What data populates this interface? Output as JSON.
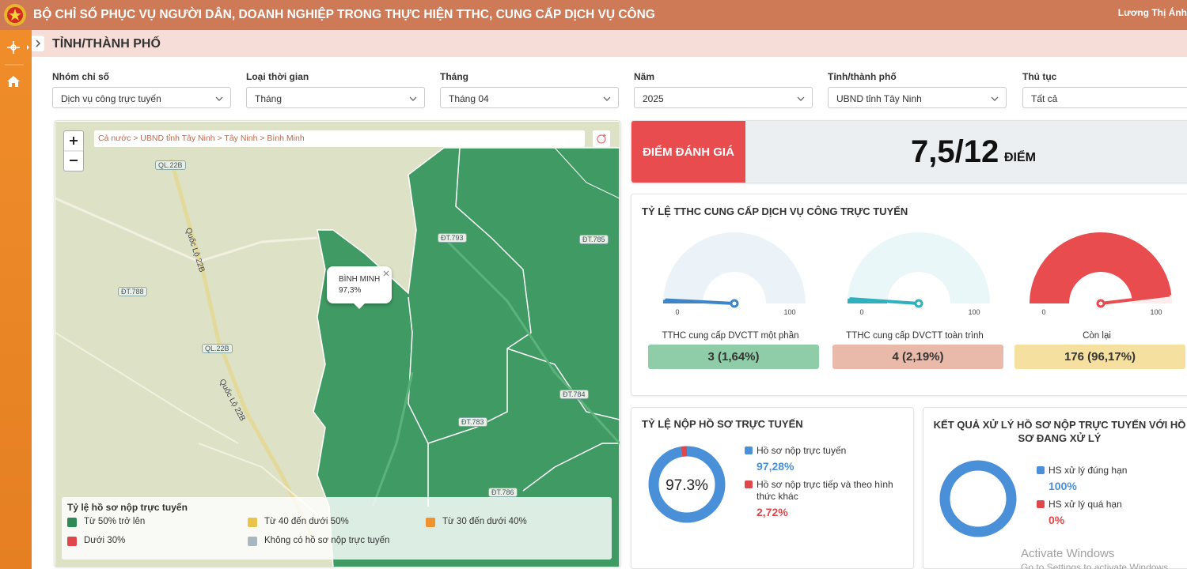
{
  "header": {
    "title": "BỘ CHỈ SỐ PHỤC VỤ NGƯỜI DÂN, DOANH NGHIỆP TRONG THỰC HIỆN TTHC, CUNG CẤP DỊCH VỤ CÔNG",
    "user": "Lương Thị Ánh"
  },
  "page_title": "TỈNH/THÀNH PHỐ",
  "filters": [
    {
      "label": "Nhóm chỉ số",
      "value": "Dịch vụ công trực tuyến"
    },
    {
      "label": "Loại thời gian",
      "value": "Tháng"
    },
    {
      "label": "Tháng",
      "value": "Tháng 04"
    },
    {
      "label": "Năm",
      "value": "2025"
    },
    {
      "label": "Tỉnh/thành phố",
      "value": "UBND tỉnh Tây Ninh"
    },
    {
      "label": "Thủ tục",
      "value": "Tất cả"
    }
  ],
  "map": {
    "breadcrumb": "Cả nước > UBND tỉnh Tây Ninh > Tây Ninh > Bình Minh",
    "road_labels": [
      "QL.22B",
      "Quốc Lộ 22B",
      "ĐT.788",
      "QL.22B",
      "Quốc Lộ 22B",
      "ĐT.793",
      "ĐT.785",
      "ĐT.784",
      "ĐT.783",
      "ĐT.786"
    ],
    "popup": {
      "name": "BÌNH MINH",
      "value": "97,3%"
    },
    "legend": {
      "title": "Tỷ lệ hồ sơ nộp trực tuyến",
      "items": [
        {
          "name": "Từ 50% trở lên",
          "color": "#2e8b57"
        },
        {
          "name": "Từ 40 đến dưới 50%",
          "color": "#e8c44a"
        },
        {
          "name": "Từ 30 đến dưới 40%",
          "color": "#f0922e"
        },
        {
          "name": "Dưới 30%",
          "color": "#e0474c"
        },
        {
          "name": "Không có hồ sơ nộp trực tuyến",
          "color": "#a9b8c0"
        }
      ]
    }
  },
  "score": {
    "label": "ĐIỂM ĐÁNH GIÁ",
    "value": "7,5/12",
    "unit": "ĐIỂM"
  },
  "gauges": {
    "title": "TỶ LỆ TTHC CUNG CẤP DỊCH VỤ CÔNG TRỰC TUYẾN",
    "items": [
      {
        "label": "TTHC cung cấp DVCTT một phần",
        "value": 1.64,
        "value_label": "3 (1,64%)",
        "min": 0,
        "max": 100,
        "color": "#3d85c6",
        "box_color": "#8fcca8"
      },
      {
        "label": "TTHC cung cấp DVCTT toàn trình",
        "value": 2.19,
        "value_label": "4 (2,19%)",
        "min": 0,
        "max": 100,
        "color": "#2fb0bf",
        "box_color": "#e9b9a9"
      },
      {
        "label": "Còn lại",
        "value": 96.17,
        "value_label": "176 (96,17%)",
        "min": 0,
        "max": 100,
        "color": "#e84c4f",
        "box_color": "#f5e0a0"
      }
    ]
  },
  "donuts": [
    {
      "title": "TỶ LỆ NỘP HỒ SƠ TRỰC TUYẾN",
      "center_label": "97.3%",
      "series": [
        {
          "name": "Hồ sơ nộp trực tuyến",
          "value": 97.28,
          "value_label": "97,28%",
          "color": "#4a90d9"
        },
        {
          "name": "Hồ sơ nộp trực tiếp và theo hình thức khác",
          "value": 2.72,
          "value_label": "2,72%",
          "color": "#e0474c"
        }
      ]
    },
    {
      "title": "KẾT QUẢ XỬ LÝ HỒ SƠ NỘP TRỰC TUYẾN VỚI HỒ SƠ ĐANG XỬ LÝ",
      "series": [
        {
          "name": "HS xử lý đúng hạn",
          "value": 100,
          "value_label": "100%",
          "color": "#4a90d9"
        },
        {
          "name": "HS xử lý quá hạn",
          "value": 0,
          "value_label": "0%",
          "color": "#e0474c"
        }
      ]
    }
  ],
  "watermark": [
    "Activate Windows",
    "Go to Settings to activate Windows."
  ]
}
